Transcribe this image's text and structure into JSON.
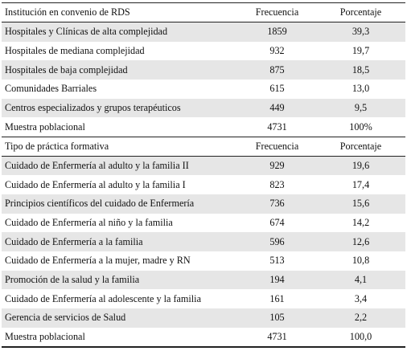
{
  "top_cut": {
    "left": "",
    "right": ""
  },
  "section1": {
    "header": {
      "label": "Institución en convenio de RDS",
      "freq": "Frecuencia",
      "pct": "Porcentaje"
    },
    "rows": [
      {
        "label": "Hospitales y Clínicas de alta complejidad",
        "freq": "1859",
        "pct": "39,3"
      },
      {
        "label": "Hospitales de mediana complejidad",
        "freq": "932",
        "pct": "19,7"
      },
      {
        "label": "Hospitales de baja complejidad",
        "freq": "875",
        "pct": "18,5"
      },
      {
        "label": "Comunidades Barriales",
        "freq": "615",
        "pct": "13,0"
      },
      {
        "label": "Centros especializados y grupos terapéuticos",
        "freq": "449",
        "pct": "9,5"
      },
      {
        "label": "Muestra poblacional",
        "freq": "4731",
        "pct": "100%"
      }
    ]
  },
  "section2": {
    "header": {
      "label": "Tipo de práctica formativa",
      "freq": "Frecuencia",
      "pct": "Porcentaje"
    },
    "rows": [
      {
        "label": "Cuidado de Enfermería al adulto y la familia II",
        "freq": "929",
        "pct": "19,6"
      },
      {
        "label": "Cuidado de Enfermería al adulto y la familia I",
        "freq": "823",
        "pct": "17,4"
      },
      {
        "label": "Principios científicos del cuidado de Enfermería",
        "freq": "736",
        "pct": "15,6"
      },
      {
        "label": "Cuidado de Enfermería al niño y la familia",
        "freq": "674",
        "pct": "14,2"
      },
      {
        "label": "Cuidado de Enfermería a la familia",
        "freq": "596",
        "pct": "12,6"
      },
      {
        "label": "Cuidado de Enfermería a la mujer, madre y RN",
        "freq": "513",
        "pct": "10,8"
      },
      {
        "label": "Promoción de la salud y la familia",
        "freq": "194",
        "pct": "4,1"
      },
      {
        "label": "Cuidado de Enfermería al adolescente y la familia",
        "freq": "161",
        "pct": "3,4"
      },
      {
        "label": "Gerencia de servicios de Salud",
        "freq": "105",
        "pct": "2,2"
      },
      {
        "label": "Muestra poblacional",
        "freq": "4731",
        "pct": "100,0"
      }
    ]
  }
}
